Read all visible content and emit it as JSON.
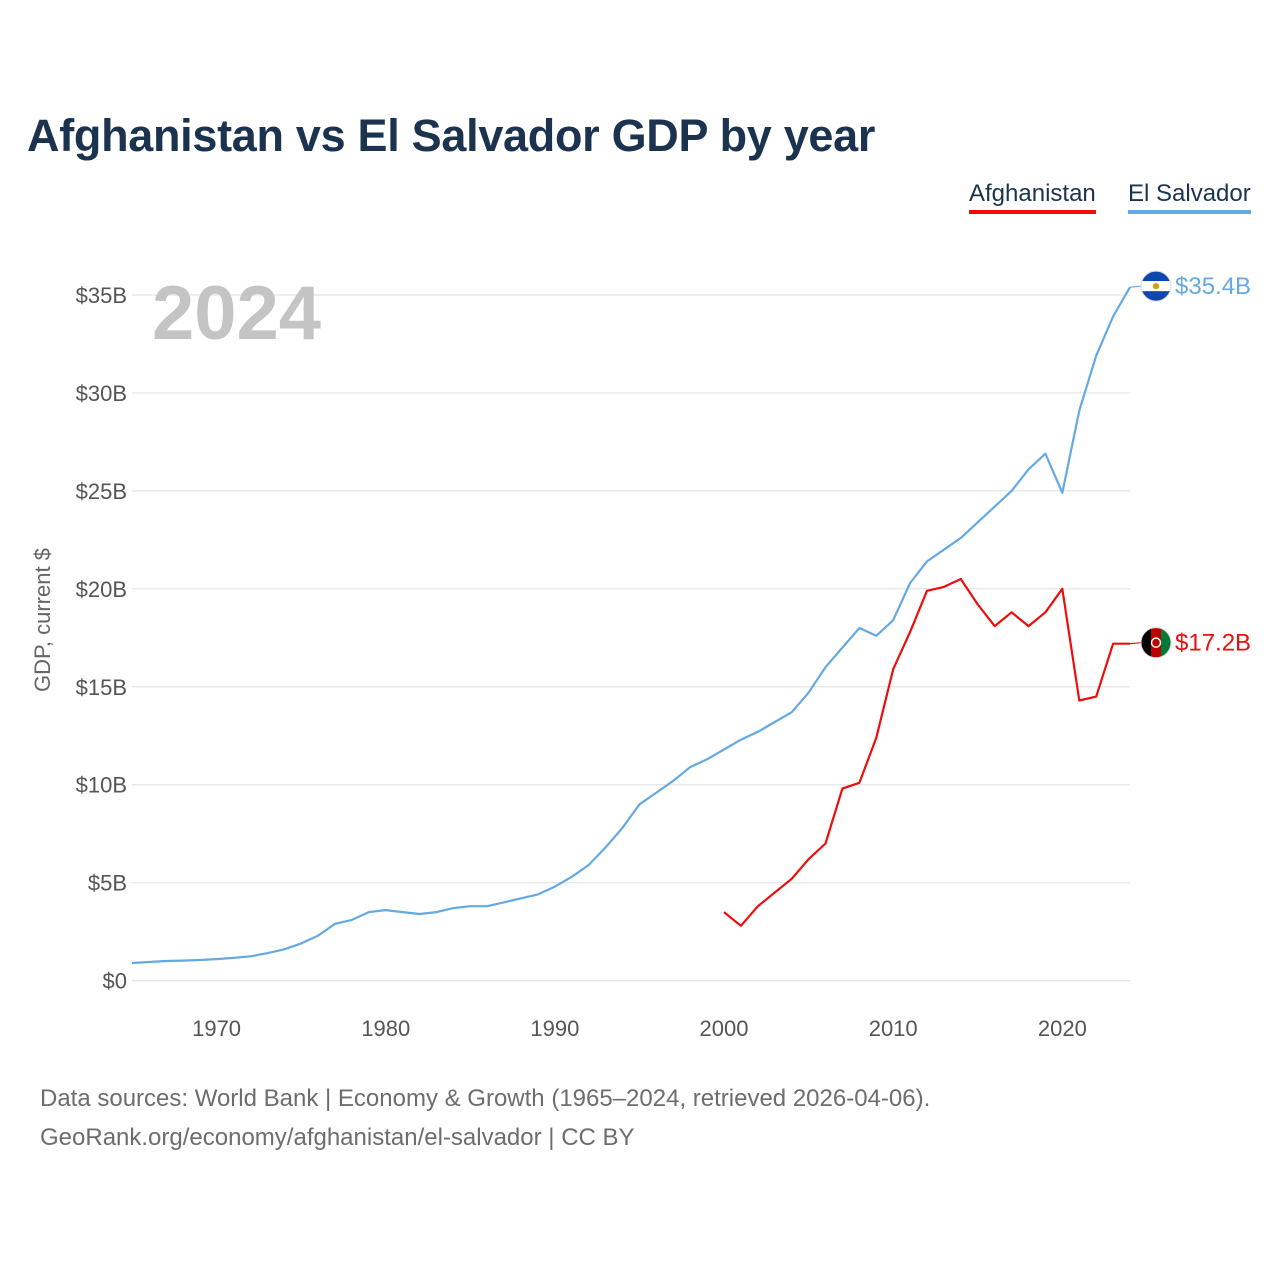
{
  "title": "Afghanistan vs El Salvador GDP by year",
  "footer": {
    "line1": "Data sources: World Bank | Economy & Growth (1965–2024, retrieved 2026-04-06).",
    "line2": "GeoRank.org/economy/afghanistan/el-salvador | CC BY"
  },
  "chart_data": {
    "type": "line",
    "title": "Afghanistan vs El Salvador GDP by year",
    "ylabel": "GDP, current $",
    "xlabel": "",
    "year_label": "2024",
    "xlim": [
      1965,
      2024
    ],
    "ylim": [
      -1.5,
      35
    ],
    "y_ticks": [
      0,
      5,
      10,
      15,
      20,
      25,
      30,
      35
    ],
    "y_tick_labels": [
      "$0",
      "$5B",
      "$10B",
      "$15B",
      "$20B",
      "$25B",
      "$30B",
      "$35B"
    ],
    "x_ticks": [
      1970,
      1980,
      1990,
      2000,
      2010,
      2020
    ],
    "x_tick_labels": [
      "1970",
      "1980",
      "1990",
      "2000",
      "2010",
      "2020"
    ],
    "grid": true,
    "legend_position": "top-right",
    "series": [
      {
        "name": "Afghanistan",
        "color": "#ee0d0d",
        "end_label": "$17.2B",
        "flag": "afghanistan-flag",
        "x": [
          2000,
          2001,
          2002,
          2003,
          2004,
          2005,
          2006,
          2007,
          2008,
          2009,
          2010,
          2011,
          2012,
          2013,
          2014,
          2015,
          2016,
          2017,
          2018,
          2019,
          2020,
          2021,
          2022,
          2023,
          2024
        ],
        "values": [
          3.5,
          2.8,
          3.8,
          4.5,
          5.2,
          6.2,
          7.0,
          9.8,
          10.1,
          12.4,
          15.9,
          17.8,
          19.9,
          20.1,
          20.5,
          19.2,
          18.1,
          18.8,
          18.1,
          18.8,
          20.0,
          14.3,
          14.5,
          17.2,
          17.2
        ]
      },
      {
        "name": "El Salvador",
        "color": "#65a9e3",
        "end_label": "$35.4B",
        "flag": "el-salvador-flag",
        "x": [
          1965,
          1966,
          1967,
          1968,
          1969,
          1970,
          1971,
          1972,
          1973,
          1974,
          1975,
          1976,
          1977,
          1978,
          1979,
          1980,
          1981,
          1982,
          1983,
          1984,
          1985,
          1986,
          1987,
          1988,
          1989,
          1990,
          1991,
          1992,
          1993,
          1994,
          1995,
          1996,
          1997,
          1998,
          1999,
          2000,
          2001,
          2002,
          2003,
          2004,
          2005,
          2006,
          2007,
          2008,
          2009,
          2010,
          2011,
          2012,
          2013,
          2014,
          2015,
          2016,
          2017,
          2018,
          2019,
          2020,
          2021,
          2022,
          2023,
          2024
        ],
        "values": [
          0.9,
          0.95,
          1.0,
          1.02,
          1.05,
          1.1,
          1.16,
          1.24,
          1.4,
          1.6,
          1.9,
          2.3,
          2.9,
          3.1,
          3.5,
          3.6,
          3.5,
          3.4,
          3.5,
          3.7,
          3.8,
          3.8,
          4.0,
          4.2,
          4.4,
          4.8,
          5.3,
          5.9,
          6.8,
          7.8,
          9.0,
          9.6,
          10.2,
          10.9,
          11.3,
          11.8,
          12.3,
          12.7,
          13.2,
          13.7,
          14.7,
          16.0,
          17.0,
          18.0,
          17.6,
          18.4,
          20.3,
          21.4,
          22.0,
          22.6,
          23.4,
          24.2,
          25.0,
          26.1,
          26.9,
          24.9,
          29.1,
          31.9,
          33.9,
          35.4
        ]
      }
    ]
  }
}
